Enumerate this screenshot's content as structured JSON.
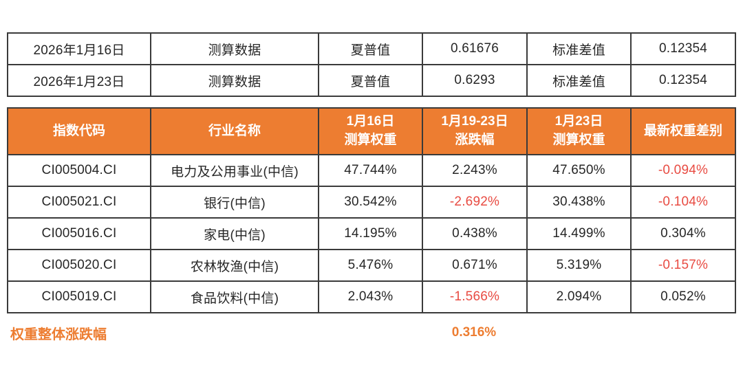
{
  "colors": {
    "header_bg": "#ED7D31",
    "accent_orange": "#ED7D31",
    "negative": "#E84B42",
    "border": "#3A3A3A",
    "text": "#262626"
  },
  "summary_table": {
    "rows": [
      [
        "2026年1月16日",
        "测算数据",
        "夏普值",
        "0.61676",
        "标准差值",
        "0.12354"
      ],
      [
        "2026年1月23日",
        "测算数据",
        "夏普值",
        "0.6293",
        "标准差值",
        "0.12354"
      ]
    ]
  },
  "weights_table": {
    "headers": [
      {
        "line1": "指数代码",
        "line2": ""
      },
      {
        "line1": "行业名称",
        "line2": ""
      },
      {
        "line1": "1月16日",
        "line2": "测算权重"
      },
      {
        "line1": "1月19-23日",
        "line2": "涨跌幅"
      },
      {
        "line1": "1月23日",
        "line2": "测算权重"
      },
      {
        "line1": "最新权重差别",
        "line2": ""
      }
    ],
    "rows": [
      {
        "code": "CI005004.CI",
        "industry": "电力及公用事业(中信)",
        "w_jan16": "47.744%",
        "change": "2.243%",
        "w_jan23": "47.650%",
        "diff": "-0.094%"
      },
      {
        "code": "CI005021.CI",
        "industry": "银行(中信)",
        "w_jan16": "30.542%",
        "change": "-2.692%",
        "w_jan23": "30.438%",
        "diff": "-0.104%"
      },
      {
        "code": "CI005016.CI",
        "industry": "家电(中信)",
        "w_jan16": "14.195%",
        "change": "0.438%",
        "w_jan23": "14.499%",
        "diff": "0.304%"
      },
      {
        "code": "CI005020.CI",
        "industry": "农林牧渔(中信)",
        "w_jan16": "5.476%",
        "change": "0.671%",
        "w_jan23": "5.319%",
        "diff": "-0.157%"
      },
      {
        "code": "CI005019.CI",
        "industry": "食品饮料(中信)",
        "w_jan16": "2.043%",
        "change": "-1.566%",
        "w_jan23": "2.094%",
        "diff": "0.052%"
      }
    ]
  },
  "totals": {
    "label": "权重整体涨跌幅",
    "value": "0.316%"
  }
}
